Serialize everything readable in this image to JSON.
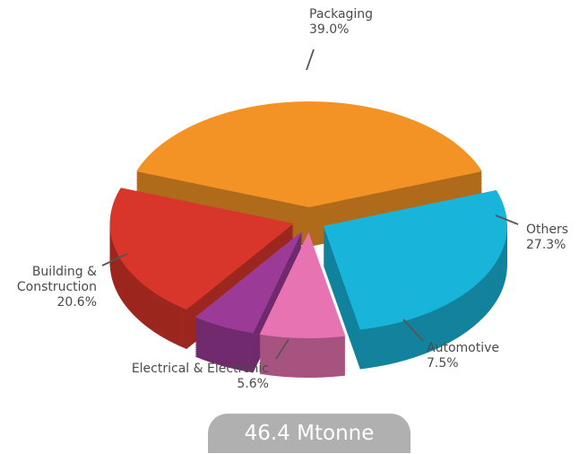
{
  "chart_data": {
    "type": "pie",
    "categories": [
      "Packaging",
      "Others",
      "Automotive",
      "Electrical & Electronic",
      "Building & Construction"
    ],
    "values": [
      39.0,
      27.3,
      7.5,
      5.6,
      20.6
    ],
    "value_labels": [
      "39.0%",
      "27.3%",
      "7.5%",
      "5.6%",
      "20.6%"
    ],
    "colors": [
      "#f39325",
      "#19b4da",
      "#e873b2",
      "#9c3b97",
      "#d9362b"
    ],
    "total_label": "46.4 Mtonne"
  }
}
